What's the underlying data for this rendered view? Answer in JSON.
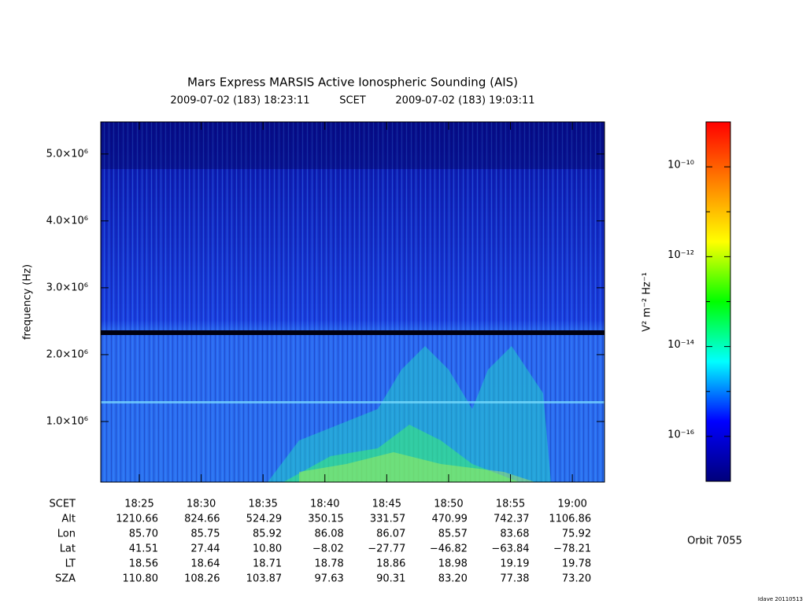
{
  "chart_data": {
    "type": "spectrogram",
    "title": "Mars Express MARSIS Active Ionospheric Sounding (AIS)",
    "start_time": "2009-07-02 (183) 18:23:11",
    "time_system": "SCET",
    "end_time": "2009-07-02 (183) 19:03:11",
    "y_label": "frequency (Hz)",
    "xlim": [
      "2009-07-02T18:21:53",
      "2009-07-02T19:02:36"
    ],
    "xticks": [
      {
        "value": "2009-07-02T18:25:00",
        "label": "18:25"
      },
      {
        "value": "2009-07-02T18:30:00",
        "label": "18:30"
      },
      {
        "value": "2009-07-02T18:35:00",
        "label": "18:35"
      },
      {
        "value": "2009-07-02T18:40:00",
        "label": "18:40"
      },
      {
        "value": "2009-07-02T18:45:00",
        "label": "18:45"
      },
      {
        "value": "2009-07-02T18:50:00",
        "label": "18:50"
      },
      {
        "value": "2009-07-02T18:55:00",
        "label": "18:55"
      },
      {
        "value": "2009-07-02T19:00:00",
        "label": "19:00"
      }
    ],
    "ylim": [
      94000,
      5480000
    ],
    "yticks": [
      {
        "value": 1000000,
        "label": "1.0×10⁶"
      },
      {
        "value": 2000000,
        "label": "2.0×10⁶"
      },
      {
        "value": 3000000,
        "label": "3.0×10⁶"
      },
      {
        "value": 4000000,
        "label": "4.0×10⁶"
      },
      {
        "value": 5000000,
        "label": "5.0×10⁶"
      }
    ],
    "colorbar": {
      "label": "V² m⁻² Hz⁻¹",
      "log_scale": true,
      "zlim": [
        1e-17,
        1e-09
      ],
      "ticks": [
        {
          "value": 1e-10,
          "label": "10⁻¹⁰"
        },
        {
          "value": 1e-12,
          "label": "10⁻¹²"
        },
        {
          "value": 1e-14,
          "label": "10⁻¹⁴"
        },
        {
          "value": 1e-16,
          "label": "10⁻¹⁶"
        }
      ],
      "minor_ticks": [
        1e-11,
        1e-13,
        1e-15
      ],
      "colors": [
        "#00007a",
        "#0000ff",
        "#00ffff",
        "#00ff00",
        "#ffff00",
        "#ff8000",
        "#ff0000"
      ]
    },
    "ephemeris": {
      "time_row_name": "SCET",
      "rows": [
        {
          "name": "Alt",
          "values": [
            "1210.66",
            "824.66",
            "524.29",
            "350.15",
            "331.57",
            "470.99",
            "742.37",
            "1106.86"
          ]
        },
        {
          "name": "Lon",
          "values": [
            "85.70",
            "85.75",
            "85.92",
            "86.08",
            "86.07",
            "85.57",
            "83.68",
            "75.92"
          ]
        },
        {
          "name": "Lat",
          "values": [
            "41.51",
            "27.44",
            "10.80",
            "−8.02",
            "−27.77",
            "−46.82",
            "−63.84",
            "−78.21"
          ]
        },
        {
          "name": "LT",
          "values": [
            "18.56",
            "18.64",
            "18.71",
            "18.78",
            "18.86",
            "18.98",
            "19.19",
            "19.78"
          ]
        },
        {
          "name": "SZA",
          "values": [
            "110.80",
            "108.26",
            "103.87",
            "97.63",
            "90.31",
            "83.20",
            "77.38",
            "73.20"
          ]
        }
      ]
    },
    "orbit": "Orbit 7055",
    "credit": "Idave 20110513"
  }
}
